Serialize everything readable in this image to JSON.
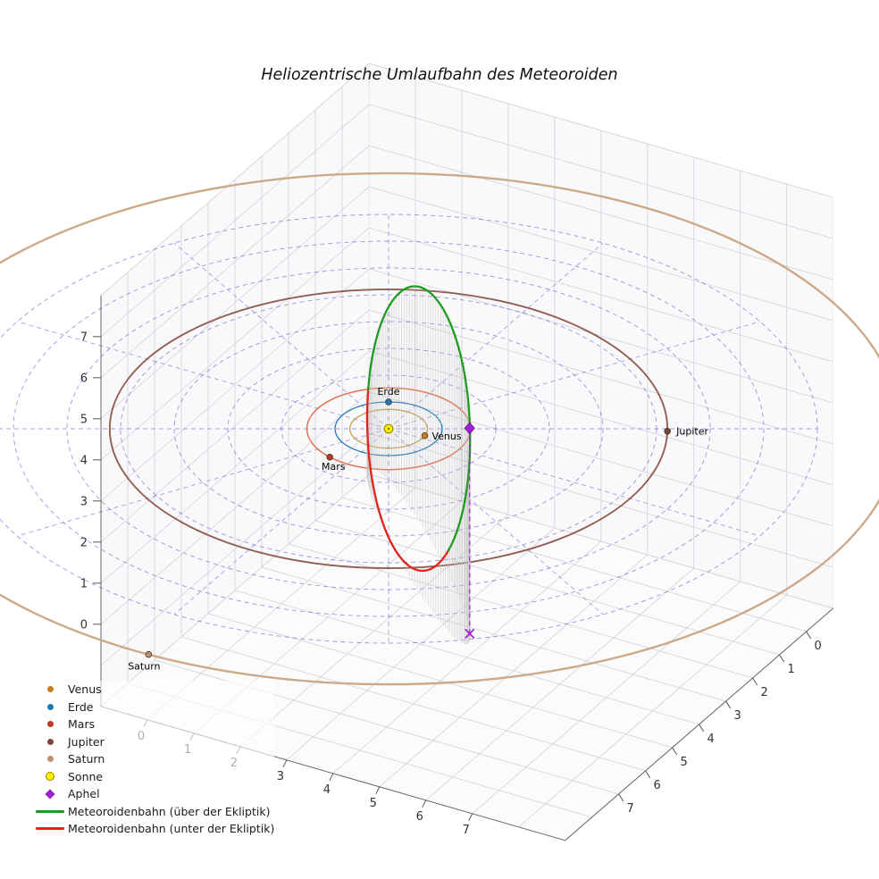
{
  "title": "Heliozentrische Umlaufbahn des Meteoroiden",
  "chart_data": {
    "type": "3d-orbit-plot",
    "title": "Heliozentrische Umlaufbahn des Meteoroiden",
    "axes": {
      "x_ticks": [
        0,
        1,
        2,
        3,
        4,
        5,
        6,
        7
      ],
      "y_ticks": [
        0,
        1,
        2,
        3,
        4,
        5,
        6,
        7
      ],
      "z_ticks": [
        0,
        1,
        2,
        3,
        4,
        5,
        6,
        7
      ],
      "pane_grid_color": "#cdcdd6",
      "axis_edge_color": "#666666"
    },
    "polar_grid": {
      "radii": [
        1,
        2,
        3,
        4,
        5,
        6,
        7,
        8
      ],
      "spoke_step_deg": 30,
      "color": "#4545cc",
      "dash": "5 4"
    },
    "sun": {
      "label": "Sonne",
      "color": "#ffee00",
      "edge_color": "#9a8a00",
      "x": 0,
      "y": 0,
      "z": 0
    },
    "planets": [
      {
        "name": "Venus",
        "radius_au": 0.723,
        "angle_deg": 99,
        "dot_color": "#c77f1e",
        "orbit_color": "#c09c4a"
      },
      {
        "name": "Erde",
        "radius_au": 1.0,
        "angle_deg": 210,
        "dot_color": "#1f77b4",
        "orbit_color": "#1f77b4"
      },
      {
        "name": "Mars",
        "radius_au": 1.524,
        "angle_deg": 344,
        "dot_color": "#b93a27",
        "orbit_color": "#df6a45"
      },
      {
        "name": "Jupiter",
        "radius_au": 5.203,
        "angle_deg": 119,
        "dot_color": "#79483b",
        "orbit_color": "#8c564b"
      },
      {
        "name": "Saturn",
        "radius_au": 9.537,
        "angle_deg": 2,
        "dot_color": "#bd9070",
        "orbit_color": "#c9a482"
      }
    ],
    "meteoroid_orbit": {
      "a_au": 3.58,
      "b_au": 2.9,
      "eccentricity": 0.585,
      "perihel_au": 1.49,
      "aphel_au": 5.67,
      "inclination_deg": 83,
      "center": [
        1.183,
        1.33,
        1.108
      ],
      "e1": [
        0.565,
        0.635,
        0.529
      ],
      "e2": [
        -0.45,
        -0.29,
        0.845
      ],
      "above_color": "#1f9c1f",
      "below_color": "#e32219",
      "above_label": "Meteoroidenbahn (über der Ekliptik)",
      "below_label": "Meteoroidenbahn (unter der Ekliptik)",
      "stem_color": "#c2c2c2"
    },
    "aphel": {
      "label": "Aphel",
      "color": "#a020d0",
      "position": [
        3.21,
        3.6,
        3.0
      ]
    }
  },
  "legend": {
    "entries": [
      {
        "label": "Venus",
        "marker": "dot",
        "color": "#c77f1e"
      },
      {
        "label": "Erde",
        "marker": "dot",
        "color": "#1f77b4"
      },
      {
        "label": "Mars",
        "marker": "dot",
        "color": "#b93a27"
      },
      {
        "label": "Jupiter",
        "marker": "dot",
        "color": "#79483b"
      },
      {
        "label": "Saturn",
        "marker": "dot",
        "color": "#bd9070"
      },
      {
        "label": "Sonne",
        "marker": "sun",
        "color": "#ffee00"
      },
      {
        "label": "Aphel",
        "marker": "diamond",
        "color": "#a020d0"
      },
      {
        "label": "Meteoroidenbahn (über der Ekliptik)",
        "marker": "line",
        "color": "#1f9c1f"
      },
      {
        "label": "Meteoroidenbahn (unter der Ekliptik)",
        "marker": "line",
        "color": "#e32219"
      }
    ]
  }
}
